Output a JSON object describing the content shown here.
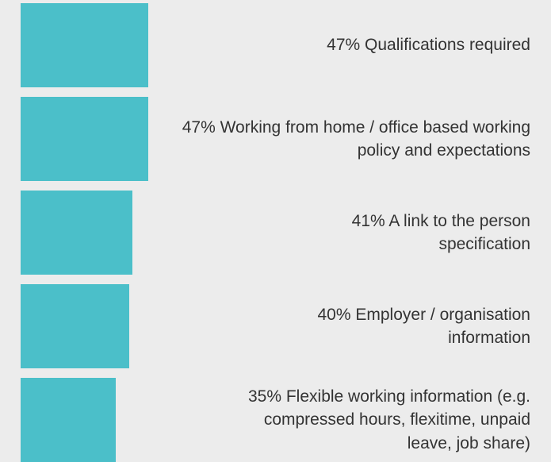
{
  "chart_data": {
    "type": "bar",
    "orientation": "horizontal",
    "color": "#4bbfc9",
    "categories": [
      "Qualifications required",
      "Working from home / office based working policy and expectations",
      "A link to the person specification",
      "Employer / organisation information",
      "Flexible working information (e.g. compressed hours, flexitime, unpaid leave, job share)"
    ],
    "values": [
      47,
      47,
      41,
      40,
      35
    ],
    "value_labels": [
      "47%",
      "47%",
      "41%",
      "40%",
      "35%"
    ]
  }
}
